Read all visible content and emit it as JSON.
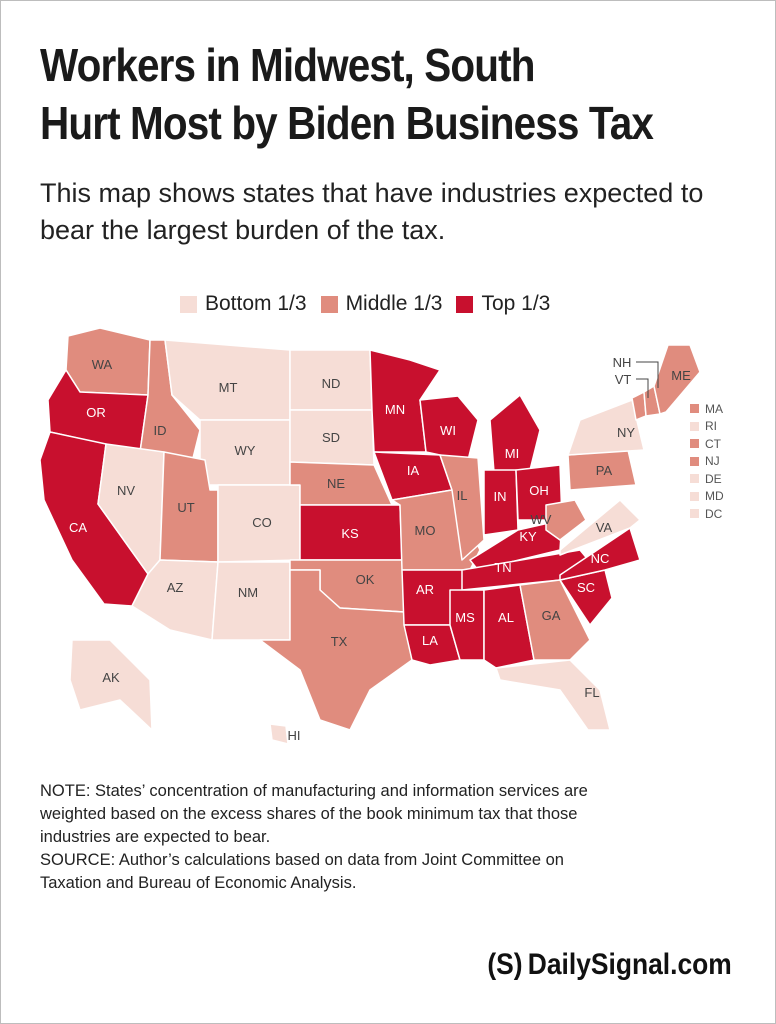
{
  "title_lines": [
    "Workers in Midwest, South",
    "Hurt Most by Biden Business Tax"
  ],
  "subtitle": "This map shows states that have industries expected to bear the largest burden of the tax.",
  "legend": [
    {
      "label": "Bottom 1/3",
      "color": "#f6ddd6"
    },
    {
      "label": "Middle 1/3",
      "color": "#e08c7e"
    },
    {
      "label": "Top 1/3",
      "color": "#c8102e"
    }
  ],
  "colors": {
    "bottom": "#f6ddd6",
    "middle": "#e08c7e",
    "top": "#c8102e"
  },
  "states": {
    "WA": "middle",
    "OR": "top",
    "CA": "top",
    "ID": "middle",
    "NV": "bottom",
    "MT": "bottom",
    "WY": "bottom",
    "UT": "middle",
    "AZ": "bottom",
    "CO": "bottom",
    "NM": "bottom",
    "ND": "bottom",
    "SD": "bottom",
    "NE": "middle",
    "KS": "top",
    "OK": "middle",
    "TX": "middle",
    "MN": "top",
    "IA": "top",
    "MO": "middle",
    "AR": "top",
    "LA": "top",
    "WI": "top",
    "IL": "middle",
    "MI": "top",
    "IN": "top",
    "OH": "top",
    "KY": "top",
    "TN": "top",
    "MS": "top",
    "AL": "top",
    "GA": "middle",
    "FL": "bottom",
    "SC": "top",
    "NC": "top",
    "VA": "bottom",
    "WV": "middle",
    "PA": "middle",
    "NY": "bottom",
    "ME": "middle",
    "NH": "middle",
    "VT": "middle",
    "AK": "bottom",
    "HI": "bottom"
  },
  "small_states": [
    {
      "label": "MA",
      "tier": "middle"
    },
    {
      "label": "RI",
      "tier": "bottom"
    },
    {
      "label": "CT",
      "tier": "middle"
    },
    {
      "label": "NJ",
      "tier": "middle"
    },
    {
      "label": "DE",
      "tier": "bottom"
    },
    {
      "label": "MD",
      "tier": "bottom"
    },
    {
      "label": "DC",
      "tier": "bottom"
    }
  ],
  "note_lines": [
    "NOTE: States’ concentration of manufacturing and information services are",
    "weighted based on the excess shares of the book minimum tax that those",
    "industries are expected to bear.",
    "SOURCE: Author’s calculations based on data from Joint Committee on",
    "Taxation and Bureau of Economic Analysis."
  ],
  "brand": {
    "mark": "(S)",
    "name": "DailySignal.com"
  }
}
